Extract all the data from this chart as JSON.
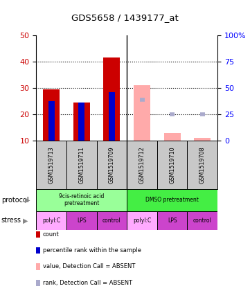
{
  "title": "GDS5658 / 1439177_at",
  "samples": [
    "GSM1519713",
    "GSM1519711",
    "GSM1519709",
    "GSM1519712",
    "GSM1519710",
    "GSM1519708"
  ],
  "bar_bottom": 10,
  "count_values": [
    29.5,
    24.5,
    41.5,
    null,
    null,
    null
  ],
  "rank_values": [
    25.0,
    24.5,
    28.5,
    null,
    null,
    null
  ],
  "absent_count_values": [
    null,
    null,
    null,
    31.0,
    13.0,
    11.0
  ],
  "absent_rank_values": [
    null,
    null,
    null,
    25.5,
    20.0,
    20.0
  ],
  "ylim": [
    10,
    50
  ],
  "y_ticks_left": [
    10,
    20,
    30,
    40,
    50
  ],
  "y_ticks_right": [
    0,
    25,
    50,
    75,
    100
  ],
  "right_tick_labels": [
    "0",
    "25",
    "50",
    "75",
    "100%"
  ],
  "bar_color_count": "#cc0000",
  "bar_color_rank": "#0000cc",
  "bar_color_absent_count": "#ffaaaa",
  "bar_color_absent_rank": "#aaaacc",
  "bar_width": 0.55,
  "rank_bar_width": 0.2,
  "protocol_labels": [
    "9cis-retinoic acid\npretreatment",
    "DMSO pretreatment"
  ],
  "protocol_colors": [
    "#99ff99",
    "#44ee44"
  ],
  "stress_colors_list": [
    "#ffaaff",
    "#cc44cc",
    "#cc44cc",
    "#ffaaff",
    "#cc44cc",
    "#cc44cc"
  ],
  "stress_labels": [
    "polyI:C",
    "LPS",
    "control",
    "polyI:C",
    "LPS",
    "control"
  ],
  "sample_bg_color": "#c8c8c8",
  "legend_items": [
    {
      "color": "#cc0000",
      "label": "count"
    },
    {
      "color": "#0000cc",
      "label": "percentile rank within the sample"
    },
    {
      "color": "#ffaaaa",
      "label": "value, Detection Call = ABSENT"
    },
    {
      "color": "#aaaacc",
      "label": "rank, Detection Call = ABSENT"
    }
  ]
}
